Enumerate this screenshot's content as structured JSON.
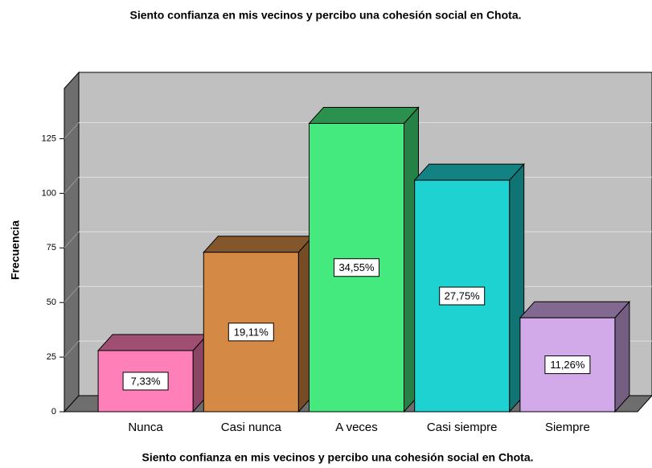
{
  "chart_data": {
    "type": "bar3d",
    "title": "Siento confianza en mis vecinos y percibo una cohesión social en Chota.",
    "x_label": "Siento confianza en mis vecinos y percibo una cohesión social en Chota.",
    "y_label": "Frecuencia",
    "categories": [
      "Nunca",
      "Casi nunca",
      "A veces",
      "Casi siempre",
      "Siempre"
    ],
    "values": [
      28,
      73,
      132,
      106,
      43
    ],
    "bar_labels": [
      "7,33%",
      "19,11%",
      "34,55%",
      "27,75%",
      "11,26%"
    ],
    "colors": [
      "#ff80b8",
      "#d48a45",
      "#44ea7e",
      "#1ed2d2",
      "#d2aaea"
    ],
    "ylim": [
      0,
      148
    ],
    "yticks": [
      0,
      25,
      50,
      75,
      100,
      125
    ],
    "grid": true
  }
}
